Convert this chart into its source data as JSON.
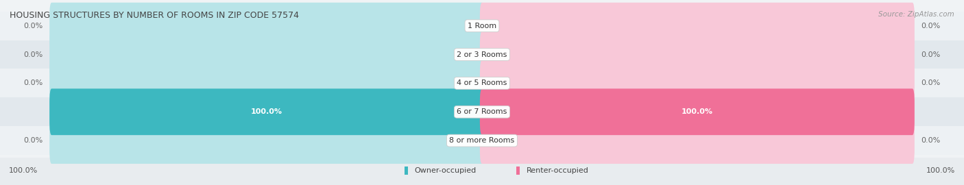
{
  "title": "HOUSING STRUCTURES BY NUMBER OF ROOMS IN ZIP CODE 57574",
  "source": "Source: ZipAtlas.com",
  "categories": [
    "1 Room",
    "2 or 3 Rooms",
    "4 or 5 Rooms",
    "6 or 7 Rooms",
    "8 or more Rooms"
  ],
  "owner_values": [
    0.0,
    0.0,
    0.0,
    100.0,
    0.0
  ],
  "renter_values": [
    0.0,
    0.0,
    0.0,
    100.0,
    0.0
  ],
  "owner_color": "#3db8c0",
  "renter_color": "#f07098",
  "owner_bg_color": "#b8e4e8",
  "renter_bg_color": "#f8c8d8",
  "row_bg_odd": "#edf1f4",
  "row_bg_even": "#e2e8ed",
  "active_row_bg": "#dde5ea",
  "label_color": "#555555",
  "title_color": "#444444",
  "legend_owner": "Owner-occupied",
  "legend_renter": "Renter-occupied",
  "max_val": 100.0,
  "figsize": [
    14.06,
    2.7
  ],
  "dpi": 100
}
